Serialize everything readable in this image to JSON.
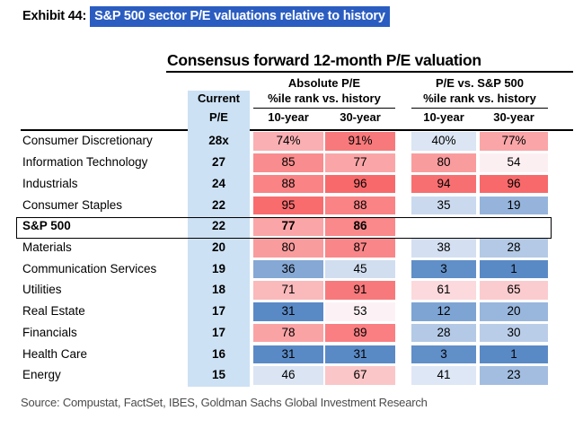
{
  "exhibit": {
    "label": "Exhibit 44:",
    "title": "S&P 500 sector P/E valuations relative to history"
  },
  "header": {
    "title": "Consensus forward 12-month P/E valuation",
    "absolute_group": "Absolute P/E",
    "relative_group": "P/E vs. S&P 500",
    "current_line1": "Current",
    "current_line2": "P/E",
    "rank_subheader": "%ile rank vs. history",
    "col_10yr": "10-year",
    "col_30yr": "30-year"
  },
  "source": "Source: Compustat, FactSet, IBES, Goldman Sachs Global Investment Research",
  "colors": {
    "highlight_blue": "#2b5dc1",
    "current_pe_column_bg": "#cde1f4",
    "scale_low": "#5A8AC6",
    "scale_mid": "#FCFCFF",
    "scale_high": "#F8696B",
    "source_text": "#4b4b4b"
  },
  "chart_data": {
    "type": "heatmap",
    "title": "Consensus forward 12-month P/E valuation",
    "column_groups": [
      "Absolute P/E — %ile rank vs. history",
      "P/E vs. S&P 500 — %ile rank vs. history"
    ],
    "columns": [
      "Current P/E",
      "Absolute 10-year %ile",
      "Absolute 30-year %ile",
      "Relative 10-year %ile",
      "Relative 30-year %ile"
    ],
    "first_row_percent_suffix": true,
    "abs_color_domain": [
      31,
      50,
      96
    ],
    "rel_color_domain": [
      1,
      50,
      96
    ],
    "rows": [
      {
        "sector": "Consumer Discretionary",
        "current_pe": "28x",
        "abs_10yr": 74,
        "abs_30yr": 91,
        "rel_10yr": 40,
        "rel_30yr": 77
      },
      {
        "sector": "Information Technology",
        "current_pe": "27",
        "abs_10yr": 85,
        "abs_30yr": 77,
        "rel_10yr": 80,
        "rel_30yr": 54
      },
      {
        "sector": "Industrials",
        "current_pe": "24",
        "abs_10yr": 88,
        "abs_30yr": 96,
        "rel_10yr": 94,
        "rel_30yr": 96
      },
      {
        "sector": "Consumer Staples",
        "current_pe": "22",
        "abs_10yr": 95,
        "abs_30yr": 88,
        "rel_10yr": 35,
        "rel_30yr": 19
      },
      {
        "sector": "S&P 500",
        "current_pe": "22",
        "abs_10yr": 77,
        "abs_30yr": 86,
        "rel_10yr": null,
        "rel_30yr": null
      },
      {
        "sector": "Materials",
        "current_pe": "20",
        "abs_10yr": 80,
        "abs_30yr": 87,
        "rel_10yr": 38,
        "rel_30yr": 28
      },
      {
        "sector": "Communication Services",
        "current_pe": "19",
        "abs_10yr": 36,
        "abs_30yr": 45,
        "rel_10yr": 3,
        "rel_30yr": 1
      },
      {
        "sector": "Utilities",
        "current_pe": "18",
        "abs_10yr": 71,
        "abs_30yr": 91,
        "rel_10yr": 61,
        "rel_30yr": 65
      },
      {
        "sector": "Real Estate",
        "current_pe": "17",
        "abs_10yr": 31,
        "abs_30yr": 53,
        "rel_10yr": 12,
        "rel_30yr": 20
      },
      {
        "sector": "Financials",
        "current_pe": "17",
        "abs_10yr": 78,
        "abs_30yr": 89,
        "rel_10yr": 28,
        "rel_30yr": 30
      },
      {
        "sector": "Health Care",
        "current_pe": "16",
        "abs_10yr": 31,
        "abs_30yr": 31,
        "rel_10yr": 3,
        "rel_30yr": 1
      },
      {
        "sector": "Energy",
        "current_pe": "15",
        "abs_10yr": 46,
        "abs_30yr": 67,
        "rel_10yr": 41,
        "rel_30yr": 23
      }
    ]
  }
}
